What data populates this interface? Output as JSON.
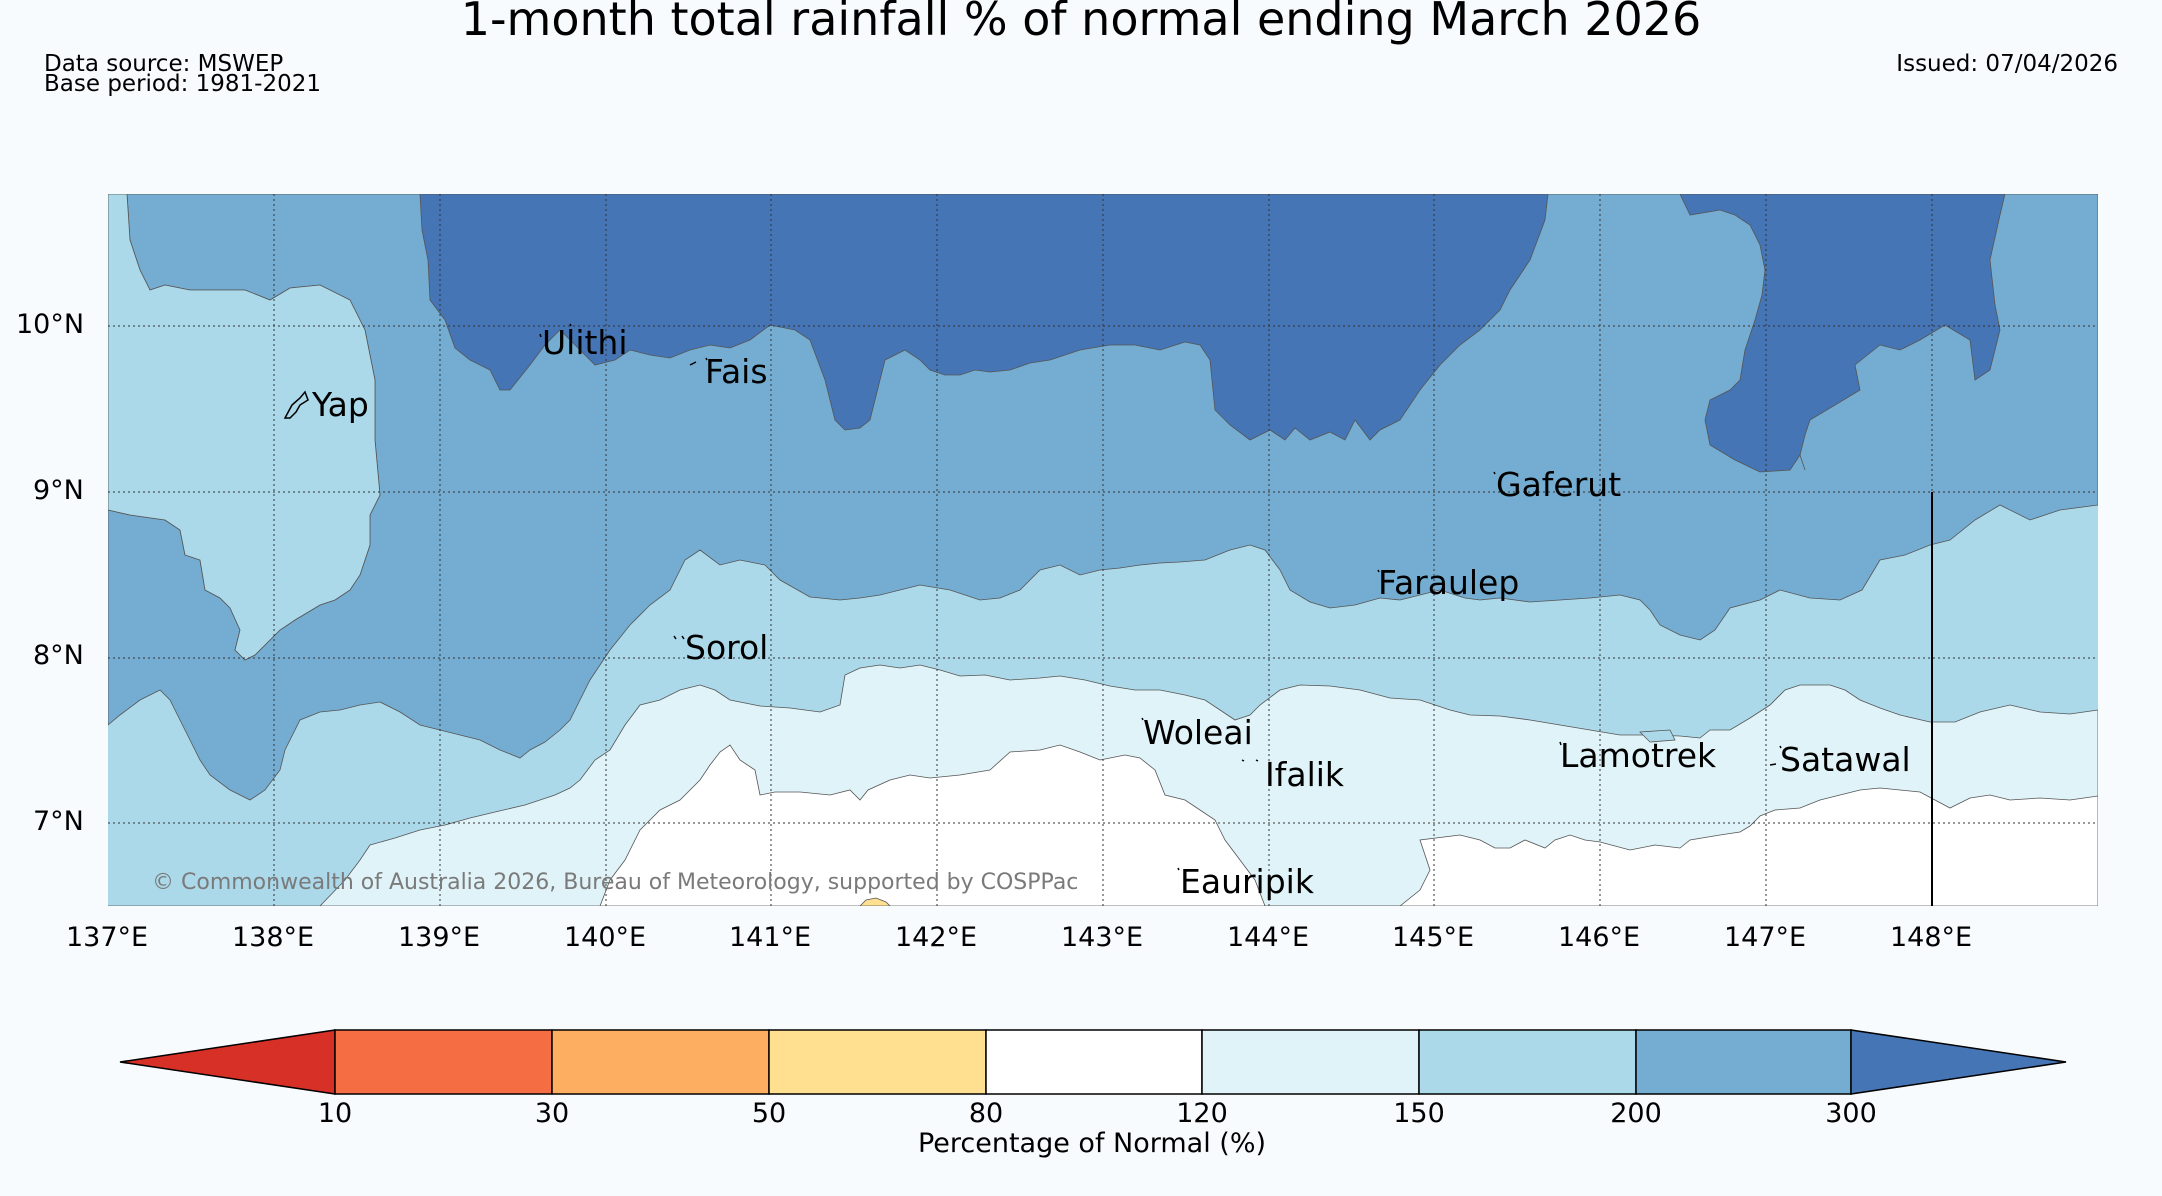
{
  "header": {
    "title": "1-month total rainfall % of normal ending March 2026",
    "data_source": "Data source: MSWEP",
    "base_period": "Base period: 1981-2021",
    "issued": "Issued: 07/04/2026"
  },
  "map": {
    "lat_labels": [
      "10°N",
      "9°N",
      "8°N",
      "7°N"
    ],
    "lon_labels": [
      "137°E",
      "138°E",
      "139°E",
      "140°E",
      "141°E",
      "142°E",
      "143°E",
      "144°E",
      "145°E",
      "146°E",
      "147°E",
      "148°E"
    ],
    "places": [
      "Ulithi",
      "Fais",
      "Yap",
      "Gaferut",
      "Faraulep",
      "Sorol",
      "Woleai",
      "Ifalik",
      "Lamotrek",
      "Satawal",
      "Eauripik"
    ],
    "copyright": "© Commonwealth of Australia 2026, Bureau of Meteorology, supported by COSPPac"
  },
  "legend": {
    "title": "Percentage of Normal (%)",
    "ticks": [
      "10",
      "30",
      "50",
      "80",
      "120",
      "150",
      "200",
      "300"
    ],
    "colors": [
      "#d73027",
      "#f46d43",
      "#fdae61",
      "#fee090",
      "#ffffff",
      "#e0f3f8",
      "#abd9e9",
      "#74add1",
      "#4575b4"
    ]
  }
}
